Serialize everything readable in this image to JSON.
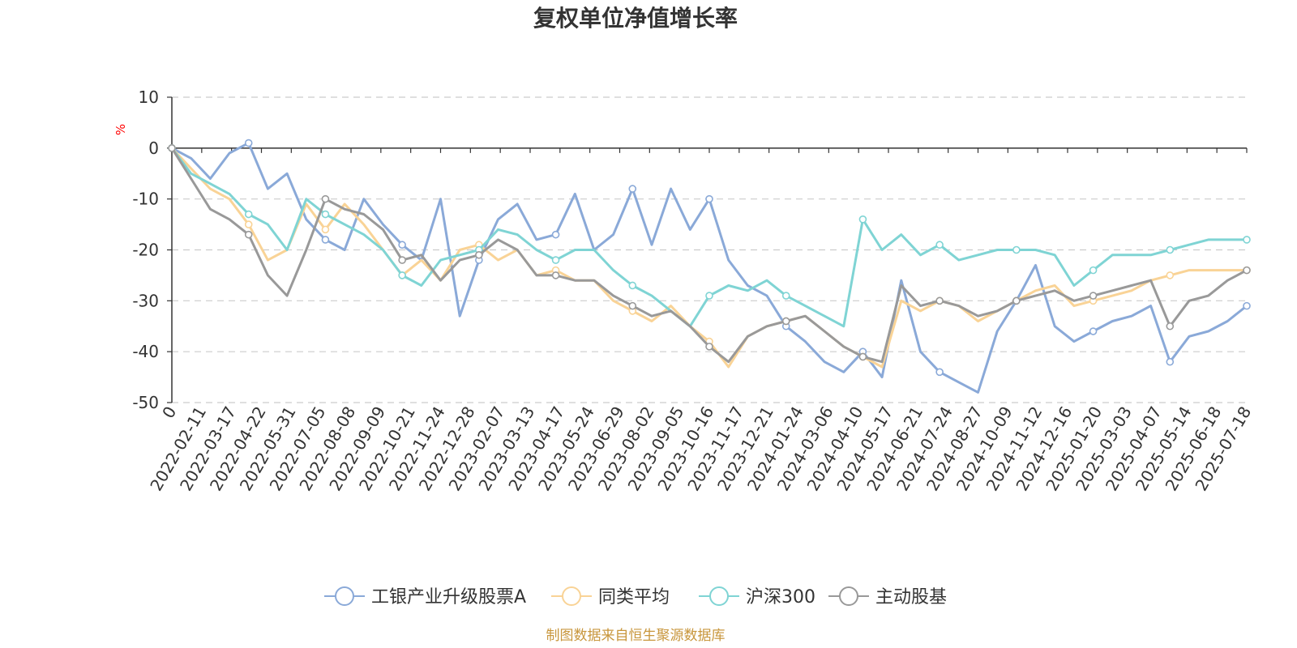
{
  "chart_data": {
    "type": "line",
    "title": "复权单位净值增长率",
    "ylabel": "%",
    "ylim": [
      -50,
      10
    ],
    "yticks": [
      10,
      0,
      -10,
      -20,
      -30,
      -40,
      -50
    ],
    "grid": true,
    "legend_position": "bottom",
    "x_tick_labels": [
      "0",
      "2022-02-11",
      "2022-03-17",
      "2022-04-22",
      "2022-05-31",
      "2022-07-05",
      "2022-08-08",
      "2022-09-09",
      "2022-10-21",
      "2022-11-24",
      "2022-12-28",
      "2023-02-07",
      "2023-03-13",
      "2023-04-17",
      "2023-05-24",
      "2023-06-29",
      "2023-08-02",
      "2023-09-05",
      "2023-10-16",
      "2023-11-17",
      "2023-12-21",
      "2024-01-24",
      "2024-03-06",
      "2024-04-10",
      "2024-05-17",
      "2024-06-21",
      "2024-07-24",
      "2024-08-27",
      "2024-10-09",
      "2024-11-12",
      "2024-12-16",
      "2025-01-20",
      "2025-03-03",
      "2025-04-07",
      "2025-05-14",
      "2025-06-18",
      "2025-07-18"
    ],
    "series": [
      {
        "name": "工银产业升级股票A",
        "color": "#8aa9d8",
        "values": [
          0,
          -2,
          -6,
          -1,
          1,
          -8,
          -5,
          -14,
          -18,
          -20,
          -10,
          -15,
          -19,
          -22,
          -10,
          -33,
          -22,
          -14,
          -11,
          -18,
          -17,
          -9,
          -20,
          -17,
          -8,
          -19,
          -8,
          -16,
          -10,
          -22,
          -27,
          -29,
          -35,
          -38,
          -42,
          -44,
          -40,
          -45,
          -26,
          -40,
          -44,
          -46,
          -48,
          -36,
          -30,
          -23,
          -35,
          -38,
          -36,
          -34,
          -33,
          -31,
          -42,
          -37,
          -36,
          -34,
          -31
        ]
      },
      {
        "name": "同类平均",
        "color": "#f9d396",
        "values": [
          0,
          -4,
          -8,
          -10,
          -15,
          -22,
          -20,
          -11,
          -16,
          -11,
          -15,
          -20,
          -25,
          -22,
          -26,
          -20,
          -19,
          -22,
          -20,
          -25,
          -24,
          -26,
          -26,
          -30,
          -32,
          -34,
          -31,
          -35,
          -38,
          -43,
          -37,
          -35,
          -34,
          -33,
          -36,
          -39,
          -41,
          -43,
          -30,
          -32,
          -30,
          -31,
          -34,
          -32,
          -30,
          -28,
          -27,
          -31,
          -30,
          -29,
          -28,
          -26,
          -25,
          -24,
          -24,
          -24,
          -24
        ]
      },
      {
        "name": "沪深300",
        "color": "#7fd4d4",
        "values": [
          0,
          -5,
          -7,
          -9,
          -13,
          -15,
          -20,
          -10,
          -13,
          -15,
          -17,
          -20,
          -25,
          -27,
          -22,
          -21,
          -20,
          -16,
          -17,
          -20,
          -22,
          -20,
          -20,
          -24,
          -27,
          -29,
          -32,
          -35,
          -29,
          -27,
          -28,
          -26,
          -29,
          -31,
          -33,
          -35,
          -14,
          -20,
          -17,
          -21,
          -19,
          -22,
          -21,
          -20,
          -20,
          -20,
          -21,
          -27,
          -24,
          -21,
          -21,
          -21,
          -20,
          -19,
          -18,
          -18,
          -18
        ]
      },
      {
        "name": "主动股基",
        "color": "#999999",
        "values": [
          0,
          -6,
          -12,
          -14,
          -17,
          -25,
          -29,
          -20,
          -10,
          -12,
          -13,
          -16,
          -22,
          -21,
          -26,
          -22,
          -21,
          -18,
          -20,
          -25,
          -25,
          -26,
          -26,
          -29,
          -31,
          -33,
          -32,
          -35,
          -39,
          -42,
          -37,
          -35,
          -34,
          -33,
          -36,
          -39,
          -41,
          -42,
          -27,
          -31,
          -30,
          -31,
          -33,
          -32,
          -30,
          -29,
          -28,
          -30,
          -29,
          -28,
          -27,
          -26,
          -35,
          -30,
          -29,
          -26,
          -24
        ]
      }
    ]
  },
  "legend": {
    "items": [
      "工银产业升级股票A",
      "同类平均",
      "沪深300",
      "主动股基"
    ]
  },
  "source_note": "制图数据来自恒生聚源数据库"
}
